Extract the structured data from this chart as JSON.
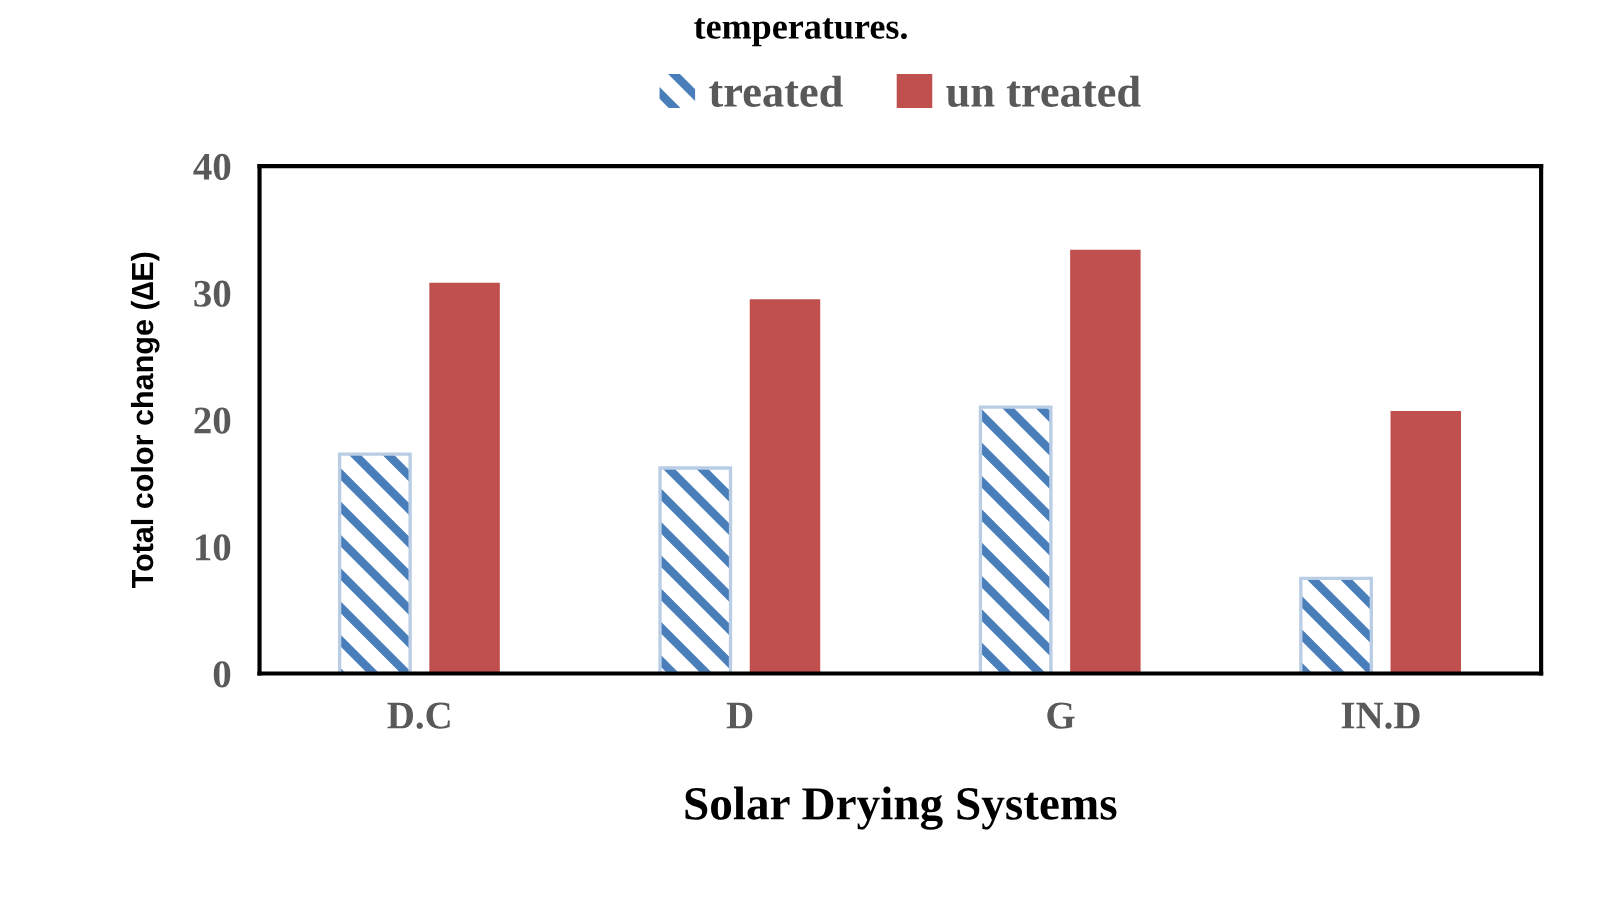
{
  "chart_data": {
    "type": "bar",
    "title": "temperatures.",
    "xlabel": "Solar Drying Systems",
    "ylabel": "Total color change (∆E)",
    "categories": [
      "D.C",
      "D",
      "G",
      "IN.D"
    ],
    "series": [
      {
        "name": "treated",
        "color": "#4a7ebb",
        "values": [
          17.3,
          16.2,
          21.0,
          7.5
        ]
      },
      {
        "name": "un treated",
        "color": "#c0504d",
        "values": [
          30.8,
          29.5,
          33.4,
          20.7
        ]
      }
    ],
    "ylim": [
      0,
      40
    ],
    "yticks": [
      0,
      10,
      20,
      30,
      40
    ],
    "grid": false,
    "legend": "top"
  }
}
